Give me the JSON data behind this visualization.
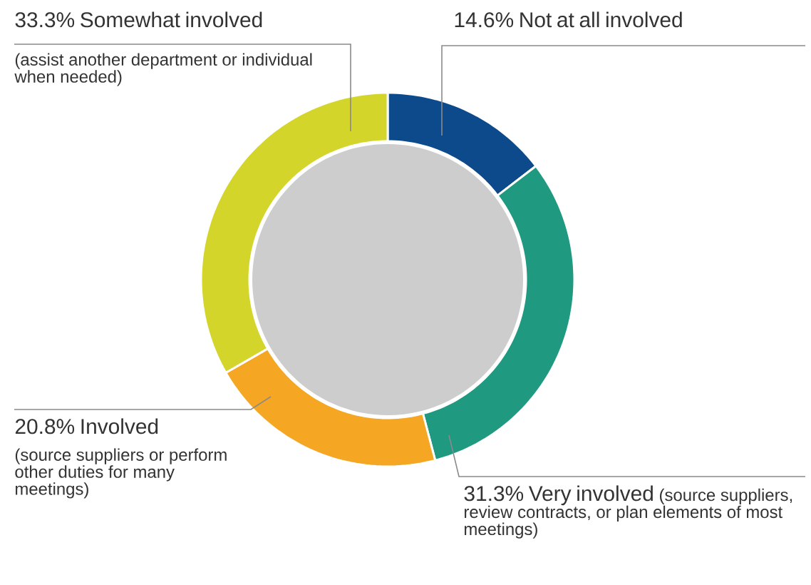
{
  "chart_data": {
    "type": "donut",
    "categories": [
      "Not at all involved",
      "Very involved",
      "Involved",
      "Somewhat involved"
    ],
    "values": [
      14.6,
      31.3,
      20.8,
      33.3
    ],
    "colors": [
      "#0d4a8c",
      "#1f9a80",
      "#f5a623",
      "#d3d52b"
    ],
    "value_labels": [
      "14.6%",
      "31.3%",
      "20.8%",
      "33.3%"
    ],
    "annotations": [
      "(source suppliers, review contracts, or plan elements of most meetings)",
      "(source suppliers or perform other duties for many meetings)",
      "(assist another department or individual when needed)"
    ]
  }
}
